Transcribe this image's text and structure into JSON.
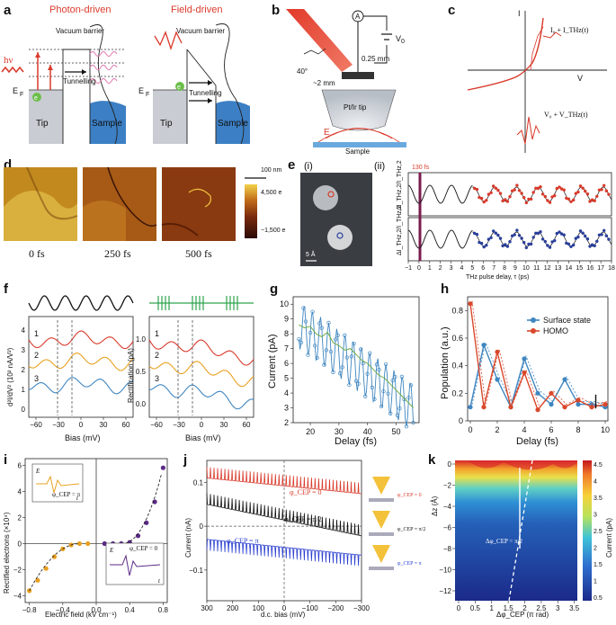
{
  "colors": {
    "red": "#d93a2b",
    "blue": "#2a3f9a",
    "orange": "#e8a020",
    "black": "#111111",
    "green": "#2da44e",
    "teal": "#3f86c0",
    "purple": "#5b2a86",
    "gray": "#9aa0a8",
    "sample_blue": "#3c7fc4"
  },
  "panel_labels": {
    "a": "a",
    "b": "b",
    "c": "c",
    "d": "d",
    "e": "e",
    "f": "f",
    "g": "g",
    "h": "h",
    "i": "i",
    "j": "j",
    "k": "k"
  },
  "panel_a": {
    "title_left": "Photon-driven",
    "title_right": "Field-driven",
    "vacuum_left": "Vacuum barrier",
    "vacuum_right": "Vacuum barrier",
    "hv": "hν",
    "ef_left": "E",
    "ef_sub": "F",
    "ef_right": "E",
    "tunnelling_left": "Tunnelling",
    "tunnelling_right": "Tunnelling",
    "tip_left": "Tip",
    "sample_left": "Sample",
    "tip_right": "Tip",
    "sample_right": "Sample",
    "electron": "e"
  },
  "panel_b": {
    "angle": "40°",
    "gap": "0.25 mm",
    "distance": "~2 mm",
    "v0": "V",
    "v0_sub": "0",
    "ammeter": "A",
    "tip_label": "Pt/Ir tip",
    "field": "E",
    "sample": "Sample"
  },
  "panel_c": {
    "i_axis": "I",
    "v_axis": "V",
    "current_label": "I₀ + I_THz(t)",
    "voltage_label": "V₀ + V_THz(t)"
  },
  "panel_d": {
    "times": [
      "0 fs",
      "250 fs",
      "500 fs"
    ],
    "scale": "100 nm",
    "cbar_max": "4,500 e",
    "cbar_min": "−1,500 e"
  },
  "panel_e": {
    "sub_i": "(i)",
    "sub_ii": "(ii)",
    "scale": "5 Å",
    "marker": "130 fs",
    "ylabel": "ΔI_THz,2/I_THz,2",
    "xlabel": "THz pulse delay, τ (ps)",
    "xticks": [
      "−1",
      "0",
      "1",
      "2",
      "3",
      "4",
      "5",
      "6",
      "7",
      "8",
      "9",
      "10",
      "11",
      "12",
      "13",
      "14",
      "15",
      "16",
      "17",
      "18"
    ]
  },
  "panel_f": {
    "left_ylabel": "d²I/dV² (10² nA/V²)",
    "right_ylabel": "Rectification (pA)",
    "xlabel": "Bias (mV)",
    "left_yticks": [
      "0",
      "1",
      "2",
      "3",
      "4"
    ],
    "right_yticks": [
      "0.0",
      "0.5",
      "1.0"
    ],
    "xticks": [
      "−60",
      "−30",
      "0",
      "30",
      "60"
    ],
    "curve_labels": [
      "1",
      "2",
      "3"
    ]
  },
  "panel_g": {
    "ylabel": "Current (pA)",
    "xlabel": "Delay (fs)",
    "yticks": [
      "2",
      "3",
      "4",
      "5",
      "6",
      "7",
      "8",
      "9",
      "10"
    ],
    "xticks": [
      "20",
      "30",
      "40",
      "50"
    ]
  },
  "panel_h": {
    "ylabel": "Population (a.u.)",
    "xlabel": "Delay (fs)",
    "yticks": [
      "0",
      "0.2",
      "0.4",
      "0.6",
      "0.8"
    ],
    "xticks": [
      "0",
      "2",
      "4",
      "6",
      "8",
      "10"
    ],
    "legend": [
      "Surface state",
      "HOMO"
    ]
  },
  "panel_i": {
    "ylabel": "Rectified electrons (×10⁴)",
    "xlabel": "Electric field (kV cm⁻¹)",
    "yticks": [
      "−4",
      "−2",
      "0",
      "2",
      "4",
      "6"
    ],
    "xticks": [
      "−0.8",
      "−0.4",
      "0.0",
      "0.4",
      "0.8"
    ],
    "inset_top": "φ_CEP = π",
    "inset_bottom": "φ_CEP = 0",
    "inset_e": "E",
    "inset_t": "t"
  },
  "panel_j": {
    "ylabel": "Current (nA)",
    "xlabel": "d.c. bias (mV)",
    "yticks": [
      "−0.1",
      "0",
      "0.1"
    ],
    "xticks": [
      "300",
      "200",
      "100",
      "0",
      "−100",
      "−200",
      "−300"
    ],
    "labels": [
      "φ_CEP = 0",
      "φ_CEP = π/2",
      "φ_CEP = π"
    ]
  },
  "panel_k": {
    "ylabel": "Δz (Å)",
    "xlabel": "Δφ_CEP (π rad)",
    "yticks": [
      "0",
      "−2",
      "−4",
      "−6",
      "−8",
      "−10",
      "−12"
    ],
    "xticks": [
      "0",
      "0.5",
      "1",
      "1.5",
      "2",
      "2.5",
      "3",
      "3.5"
    ],
    "annotation": "Δφ_CEP = π/2",
    "cbar_label": "Current (pA)",
    "cbar_ticks": [
      "0.5",
      "1",
      "1.5",
      "2",
      "2.5",
      "3",
      "3.5",
      "4",
      "4.5"
    ]
  },
  "chart_data": [
    {
      "type": "line",
      "panel": "g",
      "x": [
        16,
        18,
        20,
        22,
        24,
        26,
        28,
        30,
        32,
        34,
        36,
        38,
        40,
        42,
        44,
        46,
        48,
        50,
        52,
        54,
        56
      ],
      "values": [
        8.6,
        8.4,
        8.5,
        8.0,
        7.8,
        8.1,
        7.4,
        7.2,
        6.9,
        7.0,
        6.6,
        6.2,
        6.0,
        5.6,
        5.2,
        5.0,
        4.6,
        4.2,
        3.8,
        3.4,
        3.0
      ],
      "xlabel": "Delay (fs)",
      "ylabel": "Current (pA)",
      "ylim": [
        2,
        10.5
      ]
    },
    {
      "type": "line",
      "panel": "h",
      "series": [
        {
          "name": "Surface state",
          "x": [
            0,
            1,
            2,
            3,
            4,
            5,
            6,
            7,
            8,
            9,
            10
          ],
          "values": [
            0.1,
            0.55,
            0.3,
            0.1,
            0.45,
            0.2,
            0.12,
            0.3,
            0.12,
            0.12,
            0.1
          ]
        },
        {
          "name": "HOMO",
          "x": [
            0,
            1,
            2,
            3,
            4,
            5,
            6,
            7,
            8,
            9,
            10
          ],
          "values": [
            0.85,
            0.1,
            0.5,
            0.1,
            0.35,
            0.08,
            0.2,
            0.1,
            0.15,
            0.1,
            0.12
          ]
        }
      ],
      "xlabel": "Delay (fs)",
      "ylabel": "Population (a.u.)",
      "ylim": [
        0,
        0.9
      ]
    },
    {
      "type": "scatter",
      "panel": "i",
      "x": [
        -0.8,
        -0.7,
        -0.6,
        -0.5,
        -0.4,
        -0.3,
        -0.2,
        -0.1,
        0.1,
        0.2,
        0.3,
        0.4,
        0.5,
        0.6,
        0.7,
        0.8
      ],
      "values": [
        -3.6,
        -2.8,
        -1.9,
        -1.0,
        -0.4,
        -0.1,
        0,
        0,
        0,
        0,
        0,
        0.1,
        0.6,
        1.6,
        3.2,
        5.8
      ],
      "xlabel": "Electric field (kV cm⁻¹)",
      "ylabel": "Rectified electrons (×10⁴)"
    }
  ]
}
